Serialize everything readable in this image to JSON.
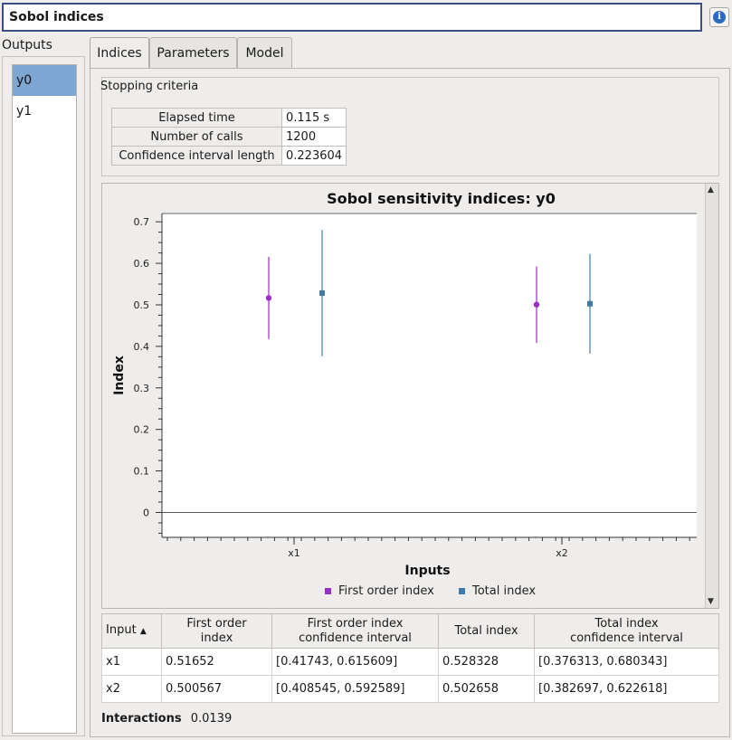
{
  "header": {
    "title": "Sobol indices",
    "info_icon": "info-icon"
  },
  "outputs": {
    "label": "Outputs",
    "items": [
      "y0",
      "y1"
    ],
    "selected": "y0"
  },
  "tabs": [
    "Indices",
    "Parameters",
    "Model"
  ],
  "active_tab": "Indices",
  "stopping": {
    "title": "Stopping criteria",
    "rows": [
      {
        "key": "Elapsed time",
        "value": "0.115 s"
      },
      {
        "key": "Number of calls",
        "value": "1200"
      },
      {
        "key": "Confidence interval length",
        "value": "0.223604"
      }
    ]
  },
  "chart_data": {
    "type": "scatter",
    "title": "Sobol sensitivity indices: y0",
    "xlabel": "Inputs",
    "ylabel": "Index",
    "categories": [
      "x1",
      "x2"
    ],
    "ylim": [
      -0.06,
      0.72
    ],
    "yticks": [
      0,
      0.1,
      0.2,
      0.3,
      0.4,
      0.5,
      0.6,
      0.7
    ],
    "legend_position": "bottom",
    "series": [
      {
        "name": "First order index",
        "color": "#9a2fc6",
        "marker": "circle",
        "values": [
          0.51652,
          0.500567
        ],
        "ci": [
          [
            0.41743,
            0.615609
          ],
          [
            0.408545,
            0.592589
          ]
        ]
      },
      {
        "name": "Total index",
        "color": "#3f7aa8",
        "marker": "square",
        "values": [
          0.528328,
          0.502658
        ],
        "ci": [
          [
            0.376313,
            0.680343
          ],
          [
            0.382697,
            0.622618
          ]
        ]
      }
    ]
  },
  "results": {
    "headers": [
      "Input",
      "First order\nindex",
      "First order index\nconfidence interval",
      "Total index",
      "Total index\nconfidence interval"
    ],
    "rows": [
      [
        "x1",
        "0.51652",
        "[0.41743, 0.615609]",
        "0.528328",
        "[0.376313, 0.680343]"
      ],
      [
        "x2",
        "0.500567",
        "[0.408545, 0.592589]",
        "0.502658",
        "[0.382697, 0.622618]"
      ]
    ]
  },
  "interactions": {
    "label": "Interactions",
    "value": "0.0139"
  }
}
